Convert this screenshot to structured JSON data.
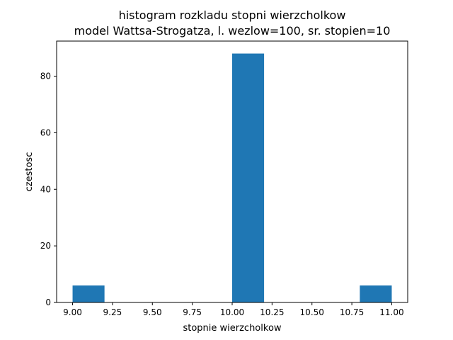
{
  "chart_data": {
    "type": "bar",
    "title": "histogram rozkladu stopni wierzcholkow",
    "subtitle": "model Wattsa-Strogatza, l. wezlow=100, sr. stopien=10",
    "xlabel": "stopnie wierzcholkow",
    "ylabel": "czestosc",
    "xlim": [
      8.9,
      11.1
    ],
    "ylim": [
      0,
      92.4
    ],
    "x_ticks": [
      9.0,
      9.25,
      9.5,
      9.75,
      10.0,
      10.25,
      10.5,
      10.75,
      11.0
    ],
    "x_tick_labels": [
      "9.00",
      "9.25",
      "9.50",
      "9.75",
      "10.00",
      "10.25",
      "10.50",
      "10.75",
      "11.00"
    ],
    "y_ticks": [
      0,
      20,
      40,
      60,
      80
    ],
    "y_tick_labels": [
      "0",
      "20",
      "40",
      "60",
      "80"
    ],
    "bins": [
      {
        "start": 9.0,
        "end": 9.2,
        "count": 6
      },
      {
        "start": 9.2,
        "end": 9.4,
        "count": 0
      },
      {
        "start": 9.4,
        "end": 9.6,
        "count": 0
      },
      {
        "start": 9.6,
        "end": 9.8,
        "count": 0
      },
      {
        "start": 9.8,
        "end": 10.0,
        "count": 0
      },
      {
        "start": 10.0,
        "end": 10.2,
        "count": 88
      },
      {
        "start": 10.2,
        "end": 10.4,
        "count": 0
      },
      {
        "start": 10.4,
        "end": 10.6,
        "count": 0
      },
      {
        "start": 10.6,
        "end": 10.8,
        "count": 0
      },
      {
        "start": 10.8,
        "end": 11.0,
        "count": 6
      }
    ],
    "bar_color": "#1f77b4",
    "grid": false
  }
}
